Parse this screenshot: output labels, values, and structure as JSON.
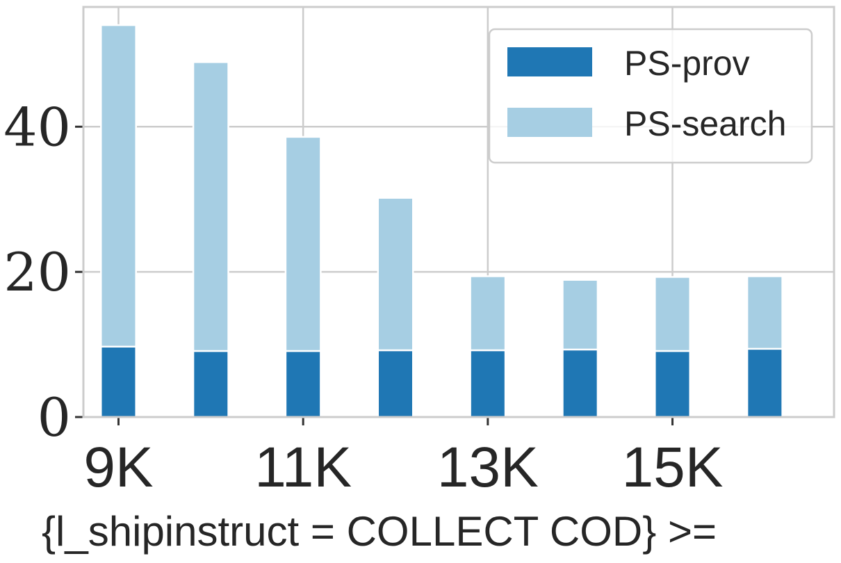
{
  "chart_data": {
    "type": "bar",
    "stacked": true,
    "x": [
      9,
      10,
      11,
      12,
      13,
      14,
      15,
      16
    ],
    "x_tick_values": [
      9,
      11,
      13,
      15
    ],
    "x_tick_labels": [
      "9K",
      "11K",
      "13K",
      "15K"
    ],
    "xlabel": "{l_shipinstruct = COLLECT COD} >=",
    "ylabel": "",
    "ylim": [
      0,
      56.5
    ],
    "y_ticks": [
      0,
      20,
      40
    ],
    "y_tick_labels": [
      "0",
      "20",
      "40"
    ],
    "grid": true,
    "legend_position": "top-right",
    "series": [
      {
        "name": "PS-prov",
        "color": "#1f77b4",
        "values": [
          9.7,
          9.1,
          9.1,
          9.2,
          9.2,
          9.3,
          9.1,
          9.4
        ]
      },
      {
        "name": "PS-search",
        "color": "#a6cee3",
        "values": [
          44.3,
          39.8,
          29.5,
          21.0,
          10.2,
          9.6,
          10.2,
          10.0
        ]
      }
    ]
  }
}
